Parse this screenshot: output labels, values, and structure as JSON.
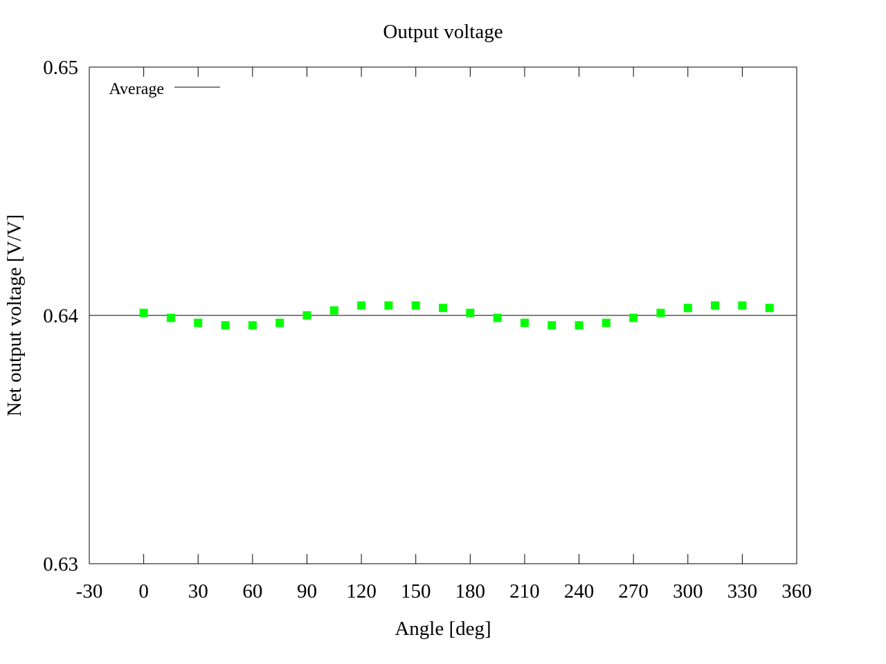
{
  "chart_data": {
    "type": "scatter",
    "title": "Output voltage",
    "xlabel": "Angle [deg]",
    "ylabel": "Net output voltage [V/V]",
    "xlim": [
      -30,
      360
    ],
    "ylim": [
      0.63,
      0.65
    ],
    "xticks": [
      -30,
      0,
      30,
      60,
      90,
      120,
      150,
      180,
      210,
      240,
      270,
      300,
      330,
      360
    ],
    "xtick_labels": [
      "-30",
      "0",
      "30",
      "60",
      "90",
      "120",
      "150",
      "180",
      "210",
      "240",
      "270",
      "300",
      "330",
      "360"
    ],
    "yticks": [
      0.63,
      0.64,
      0.65
    ],
    "ytick_labels": [
      "0.63",
      "0.64",
      "0.65"
    ],
    "grid": false,
    "legend": {
      "position": "top-left",
      "entries": [
        {
          "label": "Average",
          "style": "line",
          "color": "#000000"
        }
      ]
    },
    "series": [
      {
        "name": "",
        "color": "#00ff00",
        "marker": "square",
        "x": [
          0,
          15,
          30,
          45,
          60,
          75,
          90,
          105,
          120,
          135,
          150,
          165,
          180,
          195,
          210,
          225,
          240,
          255,
          270,
          285,
          300,
          315,
          330,
          345
        ],
        "y": [
          0.6401,
          0.6399,
          0.6397,
          0.6396,
          0.6396,
          0.6397,
          0.64,
          0.6402,
          0.6404,
          0.6404,
          0.6404,
          0.6403,
          0.6401,
          0.6399,
          0.6397,
          0.6396,
          0.6396,
          0.6397,
          0.6399,
          0.6401,
          0.6403,
          0.6404,
          0.6404,
          0.6403
        ]
      },
      {
        "name": "Average",
        "color": "#000000",
        "style": "line",
        "x": [
          -30,
          360
        ],
        "y": [
          0.64,
          0.64
        ]
      }
    ]
  }
}
